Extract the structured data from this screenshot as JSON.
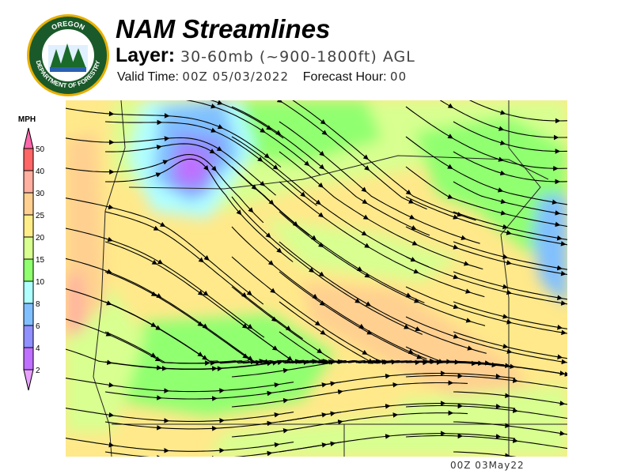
{
  "logo": {
    "text": "OREGON DEPARTMENT OF FORESTRY"
  },
  "header": {
    "title": "NAM Streamlines",
    "layer_label": "Layer:",
    "layer_value": "30-60mb (~900-1800ft) AGL",
    "valid_label": "Valid Time:",
    "valid_value": "00Z 05/03/2022",
    "forecast_label": "Forecast Hour:",
    "forecast_value": "00"
  },
  "legend": {
    "unit": "MPH",
    "ticks": [
      "50",
      "40",
      "30",
      "25",
      "20",
      "15",
      "10",
      "8",
      "6",
      "4",
      "2"
    ],
    "colors": [
      "#ff66aa",
      "#ff6666",
      "#ffb0a0",
      "#ffd090",
      "#ffee88",
      "#d8ff90",
      "#90ff70",
      "#b0ffff",
      "#80c0ff",
      "#9090ff",
      "#c070ff",
      "#e8a0ff"
    ]
  },
  "map": {
    "colors": {
      "background": "#ffe98a",
      "light_green": "#d8ff90",
      "green": "#90ff70",
      "orange": "#ffd090",
      "cyan": "#b0ffff",
      "blue": "#80c0ff",
      "indigo": "#9090ff",
      "purple": "#c070ff",
      "salmon": "#ffb0a0"
    }
  },
  "footer": {
    "stamp": "00Z 03May22"
  }
}
